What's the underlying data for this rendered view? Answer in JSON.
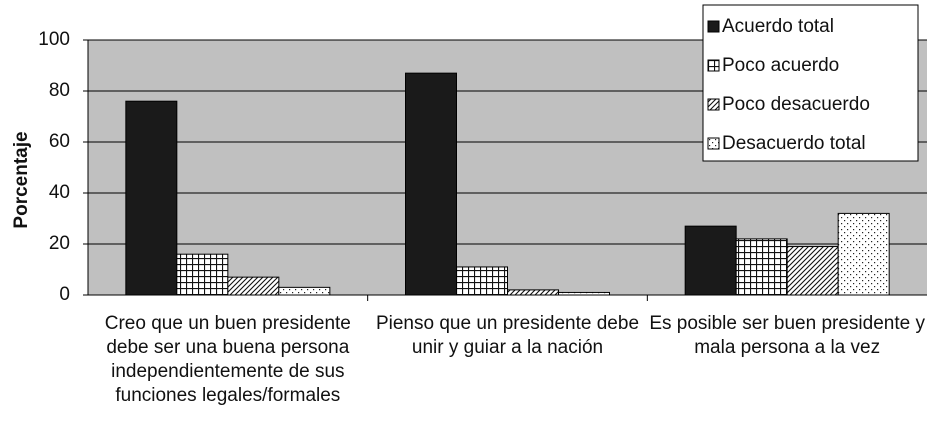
{
  "chart_data": {
    "type": "bar",
    "y_label": "Porcentaje",
    "categories": [
      "Creo que un buen presidente debe ser una buena persona independientemente de sus funciones legales/formales",
      "Pienso que un presidente debe unir y guiar a la nación",
      "Es posible ser buen presidente y mala persona a la vez"
    ],
    "series": [
      {
        "name": "Acuerdo total",
        "color": "#1a1a1a",
        "pattern": "solid",
        "values": [
          76,
          87,
          27
        ]
      },
      {
        "name": "Poco acuerdo",
        "color": "#1a1a1a",
        "pattern": "grid",
        "values": [
          16,
          11,
          22
        ]
      },
      {
        "name": "Poco desacuerdo",
        "color": "#1a1a1a",
        "pattern": "hatch",
        "values": [
          7,
          2,
          19
        ]
      },
      {
        "name": "Desacuerdo total",
        "color": "#1a1a1a",
        "pattern": "dots",
        "values": [
          3,
          1,
          32
        ]
      }
    ],
    "ylim": [
      0,
      100
    ],
    "yticks": [
      0,
      20,
      40,
      60,
      80,
      100
    ],
    "grid": true,
    "legend": "top-right",
    "background": "#c0c0c0"
  }
}
